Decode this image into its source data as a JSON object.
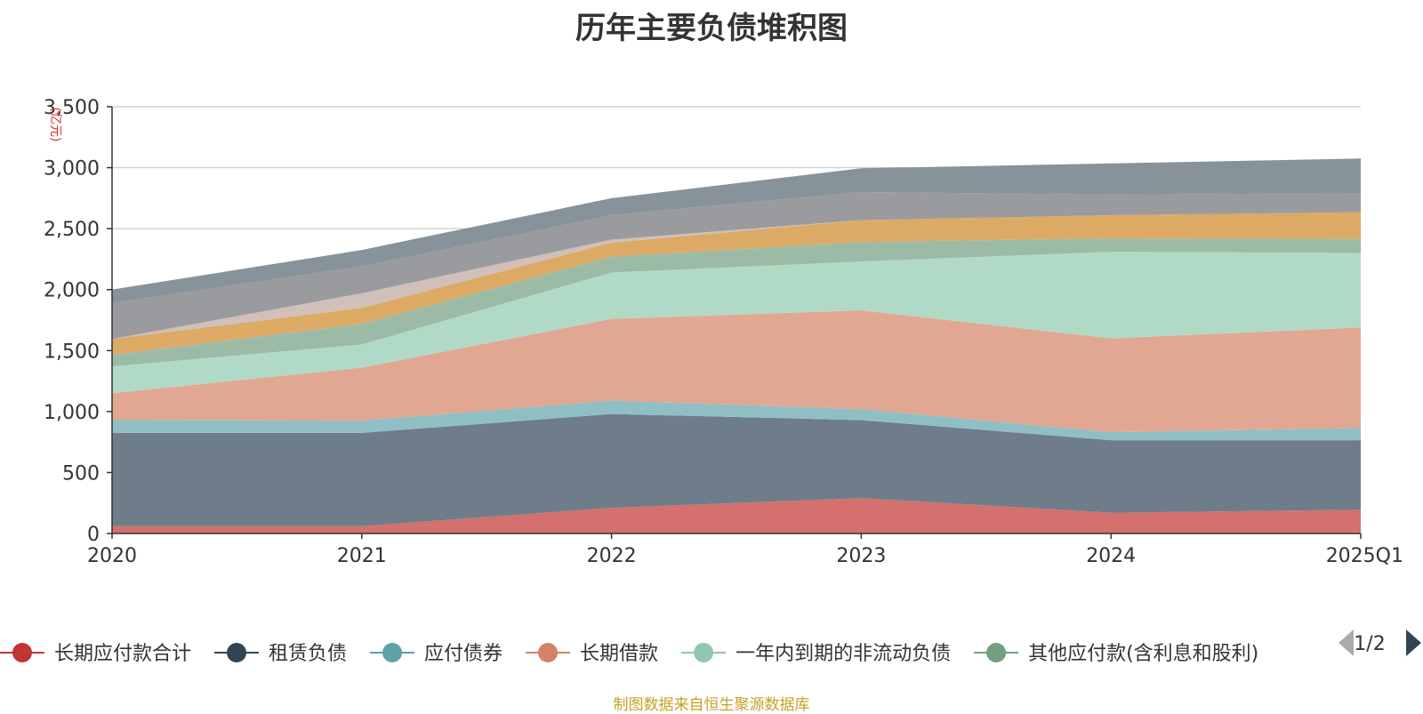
{
  "chart_data": {
    "type": "area",
    "stacked": true,
    "title": "历年主要负债堆积图",
    "unit_label": "(亿元)",
    "x": [
      "2020",
      "2021",
      "2022",
      "2023",
      "2024",
      "2025Q1"
    ],
    "ylim": [
      0,
      3500
    ],
    "yticks": [
      "0",
      "500",
      "1,000",
      "1,500",
      "2,000",
      "2,500",
      "3,000",
      "3,500"
    ],
    "grid": true,
    "legend_position": "bottom",
    "legend_page": "1/2",
    "series": [
      {
        "name": "长期应付款合计",
        "color": "#c23531",
        "area_color": "#d4706d",
        "values": [
          60,
          60,
          210,
          290,
          170,
          195
        ]
      },
      {
        "name": "租赁负债",
        "color": "#2f4554",
        "area_color": "#6e7d89",
        "values": [
          765,
          765,
          770,
          640,
          595,
          570
        ]
      },
      {
        "name": "应付债券",
        "color": "#61a0a8",
        "area_color": "#8fbfc4",
        "values": [
          105,
          100,
          110,
          90,
          65,
          100
        ]
      },
      {
        "name": "长期借款",
        "color": "#d48265",
        "area_color": "#e1a793",
        "values": [
          220,
          435,
          670,
          810,
          770,
          825
        ]
      },
      {
        "name": "一年内到期的非流动负债",
        "color": "#91c7ae",
        "area_color": "#b1dac6",
        "values": [
          220,
          190,
          380,
          400,
          710,
          610
        ]
      },
      {
        "name": "其他应付款(含利息和股利)",
        "color": "#749f83",
        "area_color": "#9bbba7",
        "values": [
          95,
          170,
          130,
          160,
          110,
          115
        ]
      },
      {
        "name": "",
        "color": "#ca8622",
        "area_color": "#dcaa64",
        "values": [
          130,
          130,
          115,
          180,
          190,
          220
        ]
      },
      {
        "name": "",
        "color": "#bda29a",
        "area_color": "#d1bfb9",
        "values": [
          0,
          120,
          25,
          0,
          0,
          0
        ]
      },
      {
        "name": "",
        "color": "#6e7074",
        "area_color": "#9a9b9f",
        "values": [
          295,
          220,
          200,
          230,
          170,
          155
        ]
      },
      {
        "name": "",
        "color": "#546570",
        "area_color": "#87939b",
        "values": [
          110,
          135,
          140,
          195,
          255,
          285
        ]
      }
    ]
  },
  "footer": {
    "source": "制图数据来自恒生聚源数据库"
  }
}
